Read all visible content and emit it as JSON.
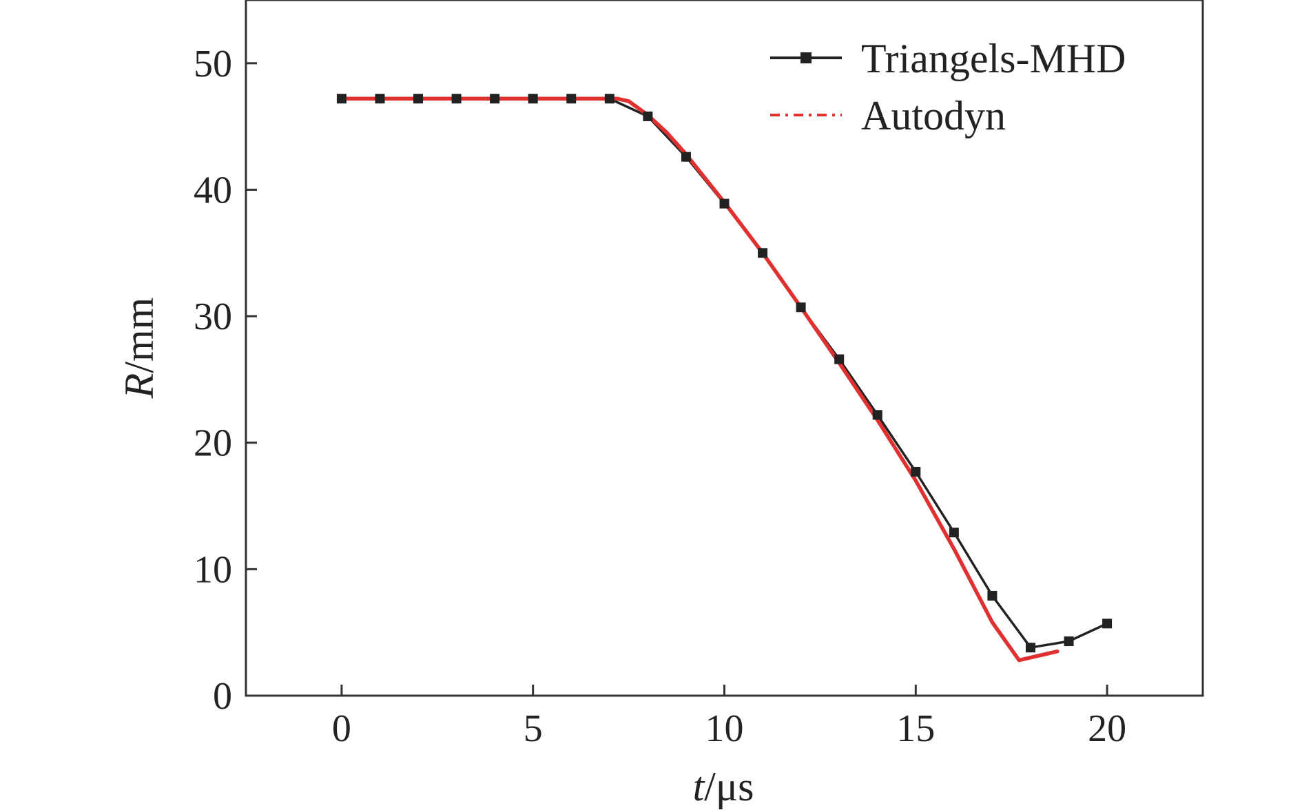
{
  "chart_data": {
    "type": "line",
    "xlabel": {
      "var": "t",
      "unit": "/μs"
    },
    "ylabel": {
      "var": "R",
      "unit": "/mm"
    },
    "xlim": [
      -2.5,
      22.5
    ],
    "ylim": [
      0,
      55
    ],
    "xticks": [
      0,
      5,
      10,
      15,
      20
    ],
    "yticks": [
      0,
      10,
      20,
      30,
      40,
      50
    ],
    "grid": false,
    "legend_position": "top-right",
    "series": [
      {
        "name": "Triangels-MHD",
        "color": "#222222",
        "marker": "square",
        "x": [
          0,
          1,
          2,
          3,
          4,
          5,
          6,
          7,
          8,
          9,
          10,
          11,
          12,
          13,
          14,
          15,
          16,
          17,
          18,
          19,
          20
        ],
        "y": [
          47.2,
          47.2,
          47.2,
          47.2,
          47.2,
          47.2,
          47.2,
          47.2,
          45.8,
          42.6,
          38.9,
          35.0,
          30.7,
          26.6,
          22.2,
          17.7,
          12.9,
          7.9,
          3.8,
          4.3,
          5.7
        ]
      },
      {
        "name": "Autodyn",
        "color": "#e03030",
        "marker": "none",
        "x": [
          0,
          7.2,
          7.5,
          8,
          8.5,
          9,
          10,
          11,
          12,
          13,
          14,
          15,
          16,
          17,
          17.7,
          18.7
        ],
        "y": [
          47.2,
          47.2,
          47.0,
          45.9,
          44.5,
          42.8,
          39.0,
          35.0,
          30.7,
          26.3,
          21.8,
          17.0,
          11.6,
          5.8,
          2.8,
          3.5
        ]
      }
    ]
  }
}
